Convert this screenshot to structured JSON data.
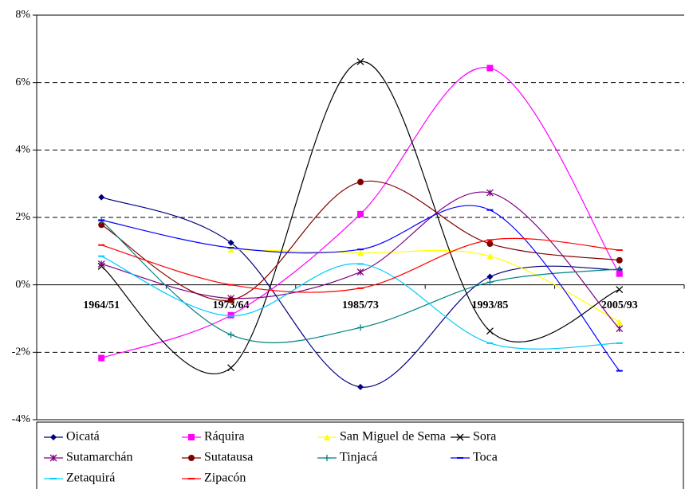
{
  "chart_data": {
    "type": "line",
    "categories": [
      "1964/51",
      "1973/64",
      "1985/73",
      "1993/85",
      "2005/93"
    ],
    "ylim": [
      -4,
      8
    ],
    "yticks": [
      {
        "value": -4,
        "label": "-4%"
      },
      {
        "value": -2,
        "label": "-2%"
      },
      {
        "value": 0,
        "label": "0%"
      },
      {
        "value": 2,
        "label": "2%"
      },
      {
        "value": 4,
        "label": "4%"
      },
      {
        "value": 6,
        "label": "6%"
      },
      {
        "value": 8,
        "label": "8%"
      }
    ],
    "grid": true,
    "smooth": true,
    "legend": "bottom",
    "series": [
      {
        "name": "Oicatá",
        "color": "#000080",
        "marker": "diamond",
        "values": [
          2.6,
          1.25,
          -3.03,
          0.24,
          0.45
        ]
      },
      {
        "name": "Ráquira",
        "color": "#ff00ff",
        "marker": "square",
        "values": [
          -2.17,
          -0.9,
          2.1,
          6.43,
          0.33
        ]
      },
      {
        "name": "San Miguel de Sema",
        "color": "#ffff00",
        "marker": "triangle",
        "values": [
          null,
          1.05,
          0.95,
          0.85,
          -1.1
        ]
      },
      {
        "name": "Sora",
        "color": "#000000",
        "marker": "x",
        "values": [
          0.55,
          -2.46,
          6.62,
          -1.37,
          -0.14
        ]
      },
      {
        "name": "Sutamarchán",
        "color": "#800080",
        "marker": "star",
        "values": [
          0.62,
          -0.4,
          0.38,
          2.73,
          -1.3
        ]
      },
      {
        "name": "Sutatausa",
        "color": "#800000",
        "marker": "circle",
        "values": [
          1.78,
          -0.45,
          3.05,
          1.22,
          0.73
        ]
      },
      {
        "name": "Tinjacá",
        "color": "#008080",
        "marker": "plus",
        "values": [
          1.9,
          -1.48,
          -1.27,
          0.08,
          0.47
        ]
      },
      {
        "name": "Toca",
        "color": "#0000ff",
        "marker": "dash",
        "values": [
          1.92,
          1.1,
          1.05,
          2.22,
          -2.55
        ]
      },
      {
        "name": "Zetaquirá",
        "color": "#00ccff",
        "marker": "dash",
        "values": [
          0.85,
          -0.92,
          0.62,
          -1.73,
          -1.73
        ]
      },
      {
        "name": "Zipacón",
        "color": "#ff0000",
        "marker": "dash",
        "values": [
          1.18,
          0.0,
          -0.1,
          1.33,
          1.03
        ]
      }
    ]
  }
}
